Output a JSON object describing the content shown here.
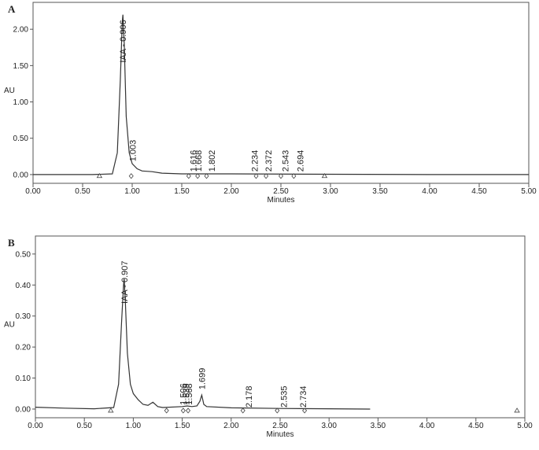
{
  "chart_data": [
    {
      "type": "line",
      "panel_label": "A",
      "x_label": "Minutes",
      "y_label": "AU",
      "color": "#333333",
      "xlim": [
        0,
        5
      ],
      "ylim": [
        -0.12,
        2.37
      ],
      "xticks": [
        {
          "value": 0,
          "label": "0.00"
        },
        {
          "value": 0.5,
          "label": "0.50"
        },
        {
          "value": 1,
          "label": "1.00"
        },
        {
          "value": 1.5,
          "label": "1.50"
        },
        {
          "value": 2,
          "label": "2.00"
        },
        {
          "value": 2.5,
          "label": "2.50"
        },
        {
          "value": 3,
          "label": "3.00"
        },
        {
          "value": 3.5,
          "label": "3.50"
        },
        {
          "value": 4,
          "label": "4.00"
        },
        {
          "value": 4.5,
          "label": "4.50"
        },
        {
          "value": 5,
          "label": "5.00"
        }
      ],
      "yticks": [
        {
          "value": 0,
          "label": "0.00"
        },
        {
          "value": 0.5,
          "label": "0.50"
        },
        {
          "value": 1,
          "label": "1.00"
        },
        {
          "value": 1.5,
          "label": "1.50"
        },
        {
          "value": 2,
          "label": "2.00"
        }
      ],
      "x": [
        0,
        0.3,
        0.6,
        0.8,
        0.85,
        0.88,
        0.9,
        0.906,
        0.92,
        0.94,
        0.97,
        1.0,
        1.05,
        1.1,
        1.2,
        1.3,
        1.5,
        2.0,
        3.0,
        4.0,
        5.0
      ],
      "values": [
        0,
        0,
        0,
        0.01,
        0.3,
        1.3,
        2.1,
        2.2,
        1.8,
        0.8,
        0.3,
        0.15,
        0.08,
        0.05,
        0.04,
        0.02,
        0.01,
        0.01,
        0.005,
        0,
        0
      ],
      "annotations": [
        {
          "text": "IAA - 0.906",
          "x": 0.906,
          "y": 1.54
        },
        {
          "text": "1.003",
          "x": 1.003,
          "y": 0.18
        },
        {
          "text": "1.616",
          "x": 1.616,
          "y": 0.04
        },
        {
          "text": "1.668",
          "x": 1.668,
          "y": 0.04
        },
        {
          "text": "1.802",
          "x": 1.802,
          "y": 0.04
        },
        {
          "text": "2.234",
          "x": 2.234,
          "y": 0.04
        },
        {
          "text": "2.372",
          "x": 2.372,
          "y": 0.04
        },
        {
          "text": "2.543",
          "x": 2.543,
          "y": 0.04
        },
        {
          "text": "2.694",
          "x": 2.694,
          "y": 0.04
        }
      ],
      "markers": {
        "x": [
          0.67,
          0.99,
          1.57,
          1.66,
          1.75,
          2.25,
          2.35,
          2.5,
          2.63,
          2.94
        ],
        "y": [
          -0.02,
          -0.02,
          -0.02,
          -0.02,
          -0.02,
          -0.02,
          -0.02,
          -0.02,
          -0.02,
          -0.02
        ],
        "shapes": [
          "triangle",
          "diamond",
          "diamond",
          "diamond",
          "diamond",
          "diamond",
          "diamond",
          "diamond",
          "diamond",
          "triangle"
        ]
      }
    },
    {
      "type": "line",
      "panel_label": "B",
      "x_label": "Minutes",
      "y_label": "AU",
      "color": "#333333",
      "xlim": [
        0,
        5
      ],
      "ylim": [
        -0.028,
        0.558
      ],
      "xticks": [
        {
          "value": 0,
          "label": "0.00"
        },
        {
          "value": 0.5,
          "label": "0.50"
        },
        {
          "value": 1,
          "label": "1.00"
        },
        {
          "value": 1.5,
          "label": "1.50"
        },
        {
          "value": 2,
          "label": "2.00"
        },
        {
          "value": 2.5,
          "label": "2.50"
        },
        {
          "value": 3,
          "label": "3.00"
        },
        {
          "value": 3.5,
          "label": "3.50"
        },
        {
          "value": 4,
          "label": "4.00"
        },
        {
          "value": 4.5,
          "label": "4.50"
        },
        {
          "value": 5,
          "label": "5.00"
        }
      ],
      "yticks": [
        {
          "value": 0,
          "label": "0.00"
        },
        {
          "value": 0.1,
          "label": "0.10"
        },
        {
          "value": 0.2,
          "label": "0.20"
        },
        {
          "value": 0.3,
          "label": "0.30"
        },
        {
          "value": 0.4,
          "label": "0.40"
        },
        {
          "value": 0.5,
          "label": "0.50"
        }
      ],
      "x": [
        0,
        0.3,
        0.6,
        0.8,
        0.85,
        0.88,
        0.9,
        0.907,
        0.92,
        0.94,
        0.97,
        1.0,
        1.05,
        1.1,
        1.15,
        1.2,
        1.25,
        1.3,
        1.5,
        1.55,
        1.6,
        1.65,
        1.68,
        1.699,
        1.72,
        1.75,
        2.0,
        2.5,
        3.0,
        3.42
      ],
      "values": [
        0.006,
        0.003,
        0.001,
        0.005,
        0.08,
        0.28,
        0.4,
        0.42,
        0.34,
        0.18,
        0.08,
        0.05,
        0.03,
        0.015,
        0.012,
        0.022,
        0.008,
        0.005,
        0.008,
        0.01,
        0.008,
        0.01,
        0.025,
        0.045,
        0.015,
        0.008,
        0.004,
        0.002,
        0.001,
        0
      ],
      "annotations": [
        {
          "text": "IAA - 0.907",
          "x": 0.907,
          "y": 0.34
        },
        {
          "text": "1.506",
          "x": 1.506,
          "y": 0.013
        },
        {
          "text": "1.539",
          "x": 1.539,
          "y": 0.013
        },
        {
          "text": "1.568",
          "x": 1.568,
          "y": 0.013
        },
        {
          "text": "1.699",
          "x": 1.699,
          "y": 0.063
        },
        {
          "text": "2.178",
          "x": 2.178,
          "y": 0.005
        },
        {
          "text": "2.535",
          "x": 2.535,
          "y": 0.005
        },
        {
          "text": "2.734",
          "x": 2.734,
          "y": 0.005
        }
      ],
      "markers": {
        "x": [
          0.77,
          1.34,
          1.51,
          1.56,
          2.12,
          2.47,
          2.75,
          4.92
        ],
        "y": [
          -0.005,
          -0.005,
          -0.005,
          -0.005,
          -0.005,
          -0.005,
          -0.005,
          -0.005
        ],
        "shapes": [
          "triangle",
          "diamond",
          "diamond",
          "diamond",
          "diamond",
          "diamond",
          "diamond",
          "triangle"
        ]
      }
    }
  ]
}
